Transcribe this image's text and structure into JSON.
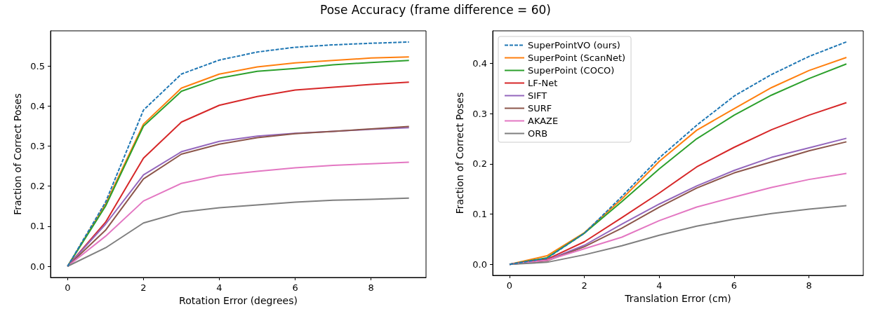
{
  "chart_data": [
    {
      "type": "line",
      "title": "Pose Accuracy (frame difference = 60)",
      "xlabel": "Rotation Error (degrees)",
      "ylabel": "Fraction of Correct Poses",
      "x": [
        0,
        1,
        2,
        3,
        4,
        5,
        6,
        7,
        8,
        9
      ],
      "xlim": [
        -0.45,
        9.45
      ],
      "xticks": [
        0,
        2,
        4,
        6,
        8
      ],
      "ylim": [
        -0.028,
        0.588
      ],
      "yticks": [
        {
          "value": 0,
          "label": "0.0"
        },
        {
          "value": 0.1,
          "label": "0.1"
        },
        {
          "value": 0.2,
          "label": "0.2"
        },
        {
          "value": 0.3,
          "label": "0.3"
        },
        {
          "value": 0.4,
          "label": "0.4"
        },
        {
          "value": 0.5,
          "label": "0.5"
        }
      ],
      "series": [
        {
          "color": "#1f77b4",
          "line_style": "dashed",
          "values": [
            0,
            0.16,
            0.39,
            0.48,
            0.515,
            0.535,
            0.547,
            0.553,
            0.557,
            0.56
          ]
        },
        {
          "color": "#ff7f0e",
          "values": [
            0,
            0.155,
            0.355,
            0.445,
            0.48,
            0.498,
            0.508,
            0.514,
            0.52,
            0.523
          ]
        },
        {
          "color": "#2ca02c",
          "values": [
            0,
            0.15,
            0.35,
            0.437,
            0.47,
            0.487,
            0.494,
            0.503,
            0.509,
            0.514
          ]
        },
        {
          "color": "#d62728",
          "values": [
            0,
            0.11,
            0.27,
            0.36,
            0.402,
            0.424,
            0.44,
            0.447,
            0.454,
            0.46
          ]
        },
        {
          "color": "#9467bd",
          "values": [
            0,
            0.105,
            0.228,
            0.286,
            0.312,
            0.325,
            0.332,
            0.337,
            0.342,
            0.346
          ]
        },
        {
          "color": "#8c564b",
          "values": [
            0,
            0.09,
            0.218,
            0.28,
            0.305,
            0.321,
            0.331,
            0.337,
            0.343,
            0.349
          ]
        },
        {
          "color": "#e377c2",
          "values": [
            0,
            0.075,
            0.163,
            0.207,
            0.227,
            0.237,
            0.246,
            0.252,
            0.256,
            0.26
          ]
        },
        {
          "color": "#7f7f7f",
          "values": [
            0,
            0.046,
            0.108,
            0.135,
            0.146,
            0.153,
            0.16,
            0.165,
            0.167,
            0.17
          ]
        }
      ]
    },
    {
      "type": "line",
      "xlabel": "Translation Error (cm)",
      "ylabel": "Fraction of Correct Poses",
      "x": [
        0,
        1,
        2,
        3,
        4,
        5,
        6,
        7,
        8,
        9
      ],
      "legend": "top left",
      "xlim": [
        -0.45,
        9.45
      ],
      "xticks": [
        0,
        2,
        4,
        6,
        8
      ],
      "ylim": [
        -0.022,
        0.465
      ],
      "yticks": [
        {
          "value": 0,
          "label": "0.0"
        },
        {
          "value": 0.1,
          "label": "0.1"
        },
        {
          "value": 0.2,
          "label": "0.2"
        },
        {
          "value": 0.3,
          "label": "0.3"
        },
        {
          "value": 0.4,
          "label": "0.4"
        }
      ],
      "series": [
        {
          "name": "SuperPointVO (ours)",
          "color": "#1f77b4",
          "line_style": "dashed",
          "values": [
            0,
            0.012,
            0.062,
            0.135,
            0.212,
            0.277,
            0.335,
            0.378,
            0.414,
            0.443
          ]
        },
        {
          "name": "SuperPoint (ScanNet)",
          "color": "#ff7f0e",
          "values": [
            0,
            0.017,
            0.063,
            0.13,
            0.205,
            0.267,
            0.31,
            0.352,
            0.386,
            0.412
          ]
        },
        {
          "name": "SuperPoint (COCO)",
          "color": "#2ca02c",
          "values": [
            0,
            0.013,
            0.062,
            0.125,
            0.19,
            0.25,
            0.297,
            0.337,
            0.37,
            0.399
          ]
        },
        {
          "name": "LF-Net",
          "color": "#d62728",
          "values": [
            0,
            0.01,
            0.045,
            0.093,
            0.142,
            0.194,
            0.233,
            0.268,
            0.297,
            0.322
          ]
        },
        {
          "name": "SIFT",
          "color": "#9467bd",
          "values": [
            0,
            0.008,
            0.038,
            0.08,
            0.12,
            0.156,
            0.187,
            0.213,
            0.232,
            0.251
          ]
        },
        {
          "name": "SURF",
          "color": "#8c564b",
          "values": [
            0,
            0.007,
            0.035,
            0.072,
            0.114,
            0.152,
            0.182,
            0.204,
            0.226,
            0.244
          ]
        },
        {
          "name": "AKAZE",
          "color": "#e377c2",
          "values": [
            0,
            0.008,
            0.031,
            0.054,
            0.087,
            0.114,
            0.134,
            0.153,
            0.169,
            0.181
          ]
        },
        {
          "name": "ORB",
          "color": "#7f7f7f",
          "values": [
            0,
            0.004,
            0.019,
            0.037,
            0.058,
            0.076,
            0.09,
            0.101,
            0.11,
            0.117
          ]
        }
      ]
    }
  ]
}
